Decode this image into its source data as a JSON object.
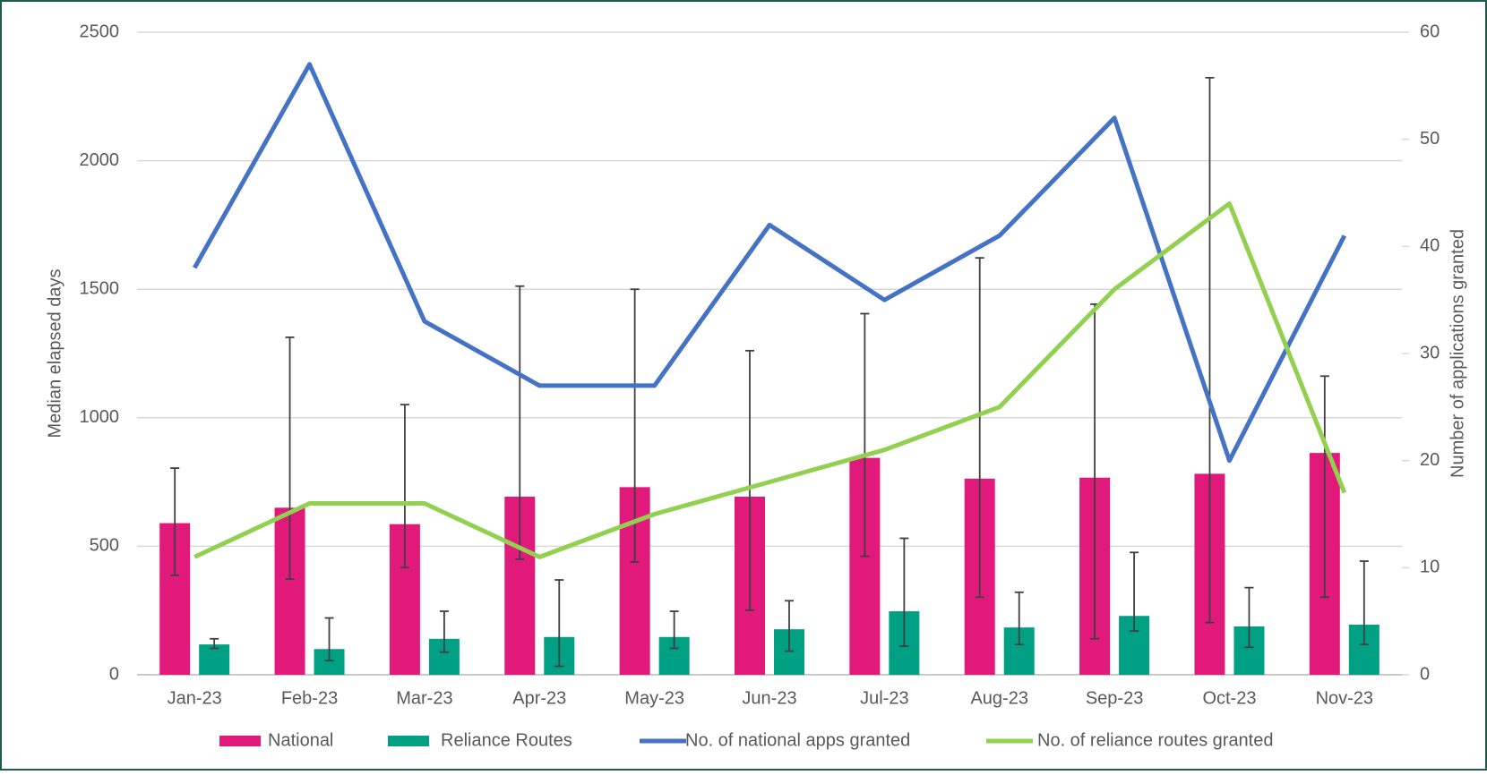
{
  "chart_data": {
    "type": "bar",
    "categories": [
      "Jan-23",
      "Feb-23",
      "Mar-23",
      "Apr-23",
      "May-23",
      "Jun-23",
      "Jul-23",
      "Aug-23",
      "Sep-23",
      "Oct-23",
      "Nov-23"
    ],
    "ylabel": "Median elapsed days",
    "y2label": "Number of applications granted",
    "ylim": [
      0,
      2500
    ],
    "yticks": [
      0,
      500,
      1000,
      1500,
      2000,
      2500
    ],
    "y2lim": [
      0,
      60
    ],
    "y2ticks": [
      0,
      10,
      20,
      30,
      40,
      50,
      60
    ],
    "grid": true,
    "legend": "bottom",
    "series": [
      {
        "name": "National",
        "type": "bar",
        "color": "#e0197a",
        "values": [
          590,
          650,
          586,
          693,
          730,
          693,
          844,
          763,
          767,
          782,
          863
        ],
        "error_low": [
          387,
          372,
          417,
          450,
          439,
          251,
          461,
          302,
          140,
          203,
          302
        ],
        "error_high": [
          804,
          1313,
          1051,
          1512,
          1500,
          1261,
          1405,
          1622,
          1442,
          2323,
          1162
        ]
      },
      {
        "name": "Reliance Routes",
        "type": "bar",
        "color": "#00a084",
        "values": [
          118,
          100,
          140,
          147,
          147,
          177,
          247,
          184,
          229,
          188,
          195
        ],
        "error_low": [
          103,
          55,
          88,
          33,
          103,
          92,
          111,
          118,
          170,
          107,
          118
        ],
        "error_high": [
          140,
          221,
          247,
          369,
          247,
          288,
          531,
          321,
          476,
          339,
          442
        ]
      },
      {
        "name": "No. of national apps granted",
        "type": "line",
        "axis": "y2",
        "color": "#4472c4",
        "values": [
          38,
          57,
          33,
          27,
          27,
          42,
          35,
          41,
          52,
          20,
          41
        ]
      },
      {
        "name": "No. of reliance routes granted",
        "type": "line",
        "axis": "y2",
        "color": "#92d050",
        "values": [
          11,
          16,
          16,
          11,
          15,
          18,
          21,
          25,
          36,
          44,
          17
        ]
      }
    ]
  }
}
